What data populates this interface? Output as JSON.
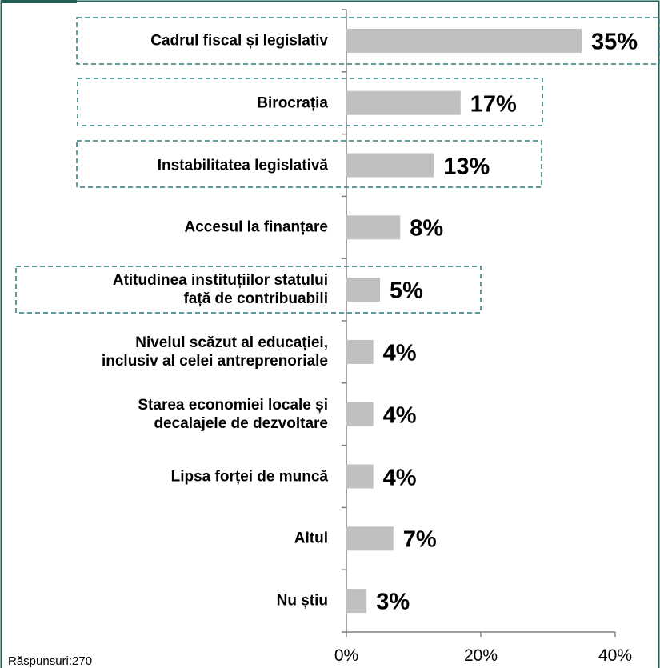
{
  "chart_data": {
    "type": "bar",
    "orientation": "horizontal",
    "categories": [
      "Cadrul fiscal și legislativ",
      "Birocrația",
      "Instabilitatea legislativă",
      "Accesul la finanțare",
      "Atitudinea instituțiilor statului\nfață de contribuabili",
      "Nivelul scăzut al educației,\ninclusiv al celei antreprenoriale",
      "Starea economiei locale și\ndecalajele de dezvoltare",
      "Lipsa forței de muncă",
      "Altul",
      "Nu știu"
    ],
    "values": [
      35,
      17,
      13,
      8,
      5,
      4,
      4,
      4,
      7,
      3
    ],
    "value_labels": [
      "35%",
      "17%",
      "13%",
      "8%",
      "5%",
      "4%",
      "4%",
      "4%",
      "7%",
      "3%"
    ],
    "color": "#c0c0c0",
    "xlim": [
      0,
      40
    ],
    "xticks": [
      {
        "value": 0,
        "label": "0%"
      },
      {
        "value": 20,
        "label": "20%"
      },
      {
        "value": 40,
        "label": "40%"
      }
    ],
    "note": "Răspunsuri:270"
  }
}
